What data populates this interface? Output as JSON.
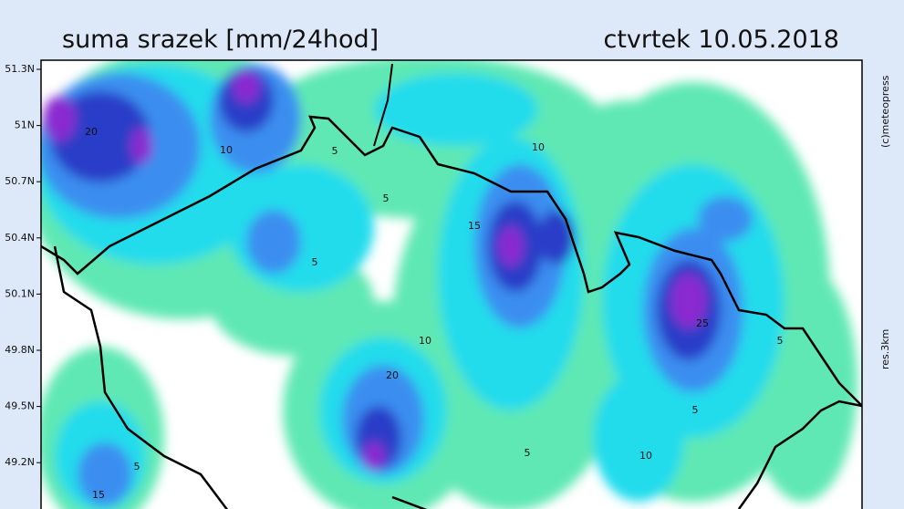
{
  "header": {
    "title": "suma srazek [mm/24hod]",
    "date": "ctvrtek 10.05.2018"
  },
  "latitude_labels": [
    "51.3N",
    "51N",
    "50.7N",
    "50.4N",
    "50.1N",
    "49.8N",
    "49.5N",
    "49.2N"
  ],
  "side_texts": {
    "copyright": "(c)meteopress",
    "resolution": "res.3km"
  },
  "contour_labels": [
    "20",
    "10",
    "5",
    "5",
    "15",
    "10",
    "5",
    "10",
    "20",
    "5",
    "10",
    "5",
    "15",
    "5",
    "25",
    "5"
  ]
}
